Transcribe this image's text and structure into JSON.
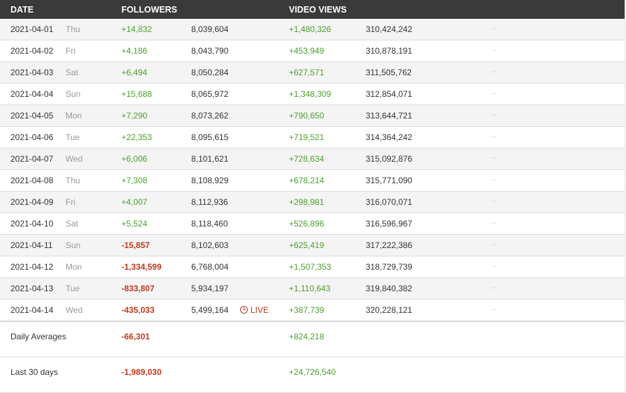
{
  "header": {
    "date": "DATE",
    "followers": "FOLLOWERS",
    "video_views": "VIDEO VIEWS"
  },
  "rows": [
    {
      "date": "2021-04-01",
      "dow": "Thu",
      "followers_change": "+14,832",
      "followers_total": "8,039,604",
      "views_change": "+1,480,326",
      "views_total": "310,424,242",
      "extra": "--"
    },
    {
      "date": "2021-04-02",
      "dow": "Fri",
      "followers_change": "+4,186",
      "followers_total": "8,043,790",
      "views_change": "+453,949",
      "views_total": "310,878,191",
      "extra": "--"
    },
    {
      "date": "2021-04-03",
      "dow": "Sat",
      "followers_change": "+6,494",
      "followers_total": "8,050,284",
      "views_change": "+627,571",
      "views_total": "311,505,762",
      "extra": "--"
    },
    {
      "date": "2021-04-04",
      "dow": "Sun",
      "followers_change": "+15,688",
      "followers_total": "8,065,972",
      "views_change": "+1,348,309",
      "views_total": "312,854,071",
      "extra": "--"
    },
    {
      "date": "2021-04-05",
      "dow": "Mon",
      "followers_change": "+7,290",
      "followers_total": "8,073,262",
      "views_change": "+790,650",
      "views_total": "313,644,721",
      "extra": "--"
    },
    {
      "date": "2021-04-06",
      "dow": "Tue",
      "followers_change": "+22,353",
      "followers_total": "8,095,615",
      "views_change": "+719,521",
      "views_total": "314,364,242",
      "extra": "--"
    },
    {
      "date": "2021-04-07",
      "dow": "Wed",
      "followers_change": "+6,006",
      "followers_total": "8,101,621",
      "views_change": "+728,634",
      "views_total": "315,092,876",
      "extra": "--"
    },
    {
      "date": "2021-04-08",
      "dow": "Thu",
      "followers_change": "+7,308",
      "followers_total": "8,108,929",
      "views_change": "+678,214",
      "views_total": "315,771,090",
      "extra": "--"
    },
    {
      "date": "2021-04-09",
      "dow": "Fri",
      "followers_change": "+4,007",
      "followers_total": "8,112,936",
      "views_change": "+298,981",
      "views_total": "316,070,071",
      "extra": "--"
    },
    {
      "date": "2021-04-10",
      "dow": "Sat",
      "followers_change": "+5,524",
      "followers_total": "8,118,460",
      "views_change": "+526,896",
      "views_total": "316,596,967",
      "extra": "--"
    },
    {
      "date": "2021-04-11",
      "dow": "Sun",
      "followers_change": "-15,857",
      "followers_total": "8,102,603",
      "views_change": "+625,419",
      "views_total": "317,222,386",
      "extra": "--"
    },
    {
      "date": "2021-04-12",
      "dow": "Mon",
      "followers_change": "-1,334,599",
      "followers_total": "6,768,004",
      "views_change": "+1,507,353",
      "views_total": "318,729,739",
      "extra": "--"
    },
    {
      "date": "2021-04-13",
      "dow": "Tue",
      "followers_change": "-833,807",
      "followers_total": "5,934,197",
      "views_change": "+1,110,643",
      "views_total": "319,840,382",
      "extra": "--"
    },
    {
      "date": "2021-04-14",
      "dow": "Wed",
      "followers_change": "-435,033",
      "followers_total": "5,499,164",
      "live": "LIVE",
      "views_change": "+387,739",
      "views_total": "320,228,121",
      "extra": "--"
    }
  ],
  "summary": [
    {
      "label": "Daily Averages",
      "followers_change": "-66,301",
      "views_change": "+824,218"
    },
    {
      "label": "Last 30 days",
      "followers_change": "-1,989,030",
      "views_change": "+24,726,540"
    }
  ],
  "colors": {
    "header_bg": "#3a3a3a",
    "positive": "#4ba02b",
    "negative": "#c0391b",
    "row_alt": "#f4f4f4"
  },
  "icons": {
    "live": "clock-icon"
  }
}
